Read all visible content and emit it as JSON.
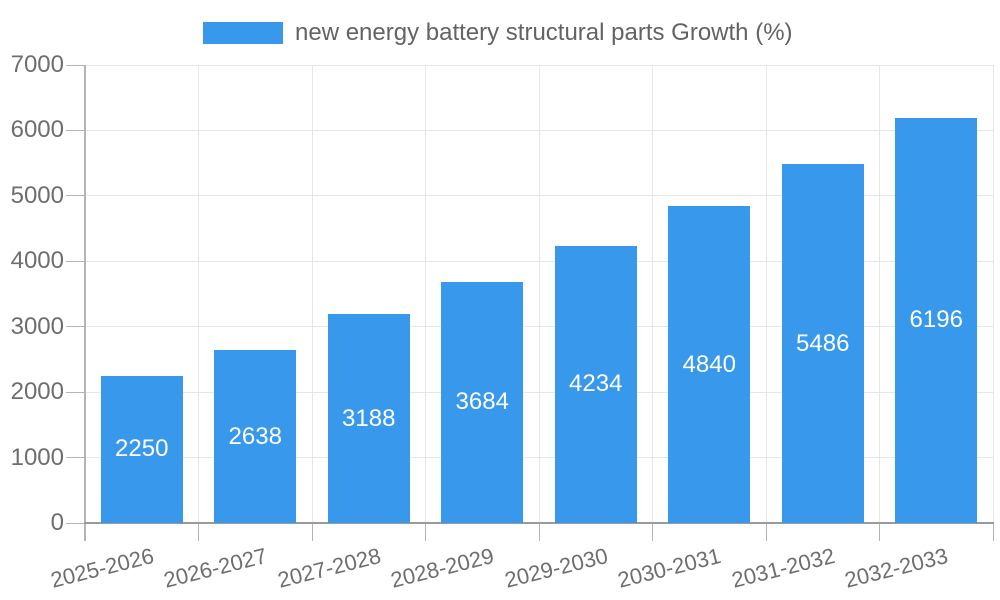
{
  "legend": {
    "label": "new energy battery structural parts Growth (%)"
  },
  "colors": {
    "bar": "#3899ec",
    "gridline": "#e6e6e6",
    "axis_line": "#b4b4b4",
    "baseline": "#9a9a9a",
    "tick": "#b4b4b4",
    "tick_label_text": "#6e6e6e",
    "legend_text": "#636363",
    "value_label_text": "#ffffff",
    "background": "#ffffff"
  },
  "chart_data": {
    "type": "bar",
    "title": "",
    "xlabel": "",
    "ylabel": "",
    "categories": [
      "2025-2026",
      "2026-2027",
      "2027-2028",
      "2028-2029",
      "2029-2030",
      "2030-2031",
      "2031-2032",
      "2032-2033"
    ],
    "series": [
      {
        "name": "new energy battery structural parts Growth (%)",
        "color": "#3899ec",
        "values": [
          2250,
          2638,
          3188,
          3684,
          4234,
          4840,
          5486,
          6196
        ]
      }
    ],
    "y_ticks": [
      0,
      1000,
      2000,
      3000,
      4000,
      5000,
      6000,
      7000
    ],
    "ylim": [
      0,
      7000
    ],
    "grid": true,
    "legend_position": "top",
    "value_label_position": "inside-center",
    "x_label_rotation_deg": -14
  }
}
